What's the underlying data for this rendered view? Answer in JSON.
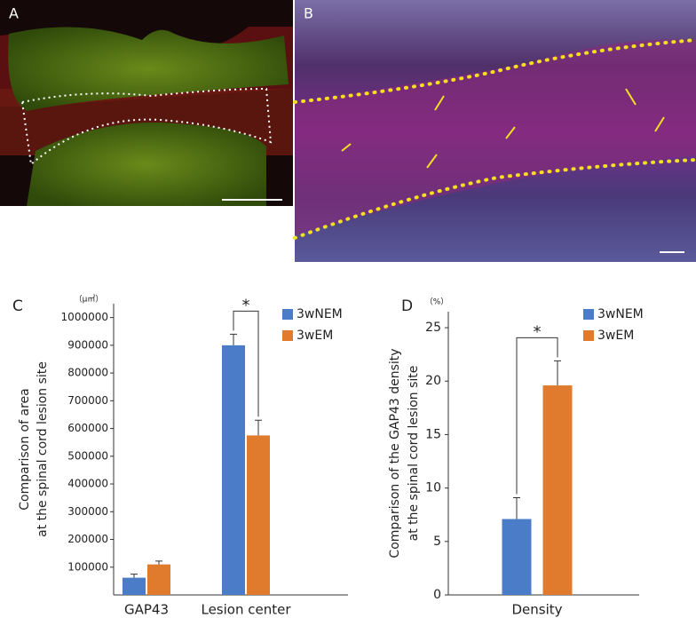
{
  "panels": [
    "A",
    "B",
    "C",
    "D"
  ],
  "chart_data": [
    {
      "type": "bar",
      "unit": "（μ㎡）",
      "ylabel": [
        "Comparison of area",
        "at the spinal cord lesion site"
      ],
      "categories": [
        "GAP43",
        "Lesion center"
      ],
      "series": [
        {
          "name": "3wNEM",
          "color": "#4a7cc7",
          "values": [
            62000,
            900000
          ],
          "errors": [
            13000,
            40000
          ]
        },
        {
          "name": "3wEM",
          "color": "#e07b2e",
          "values": [
            110000,
            575000
          ],
          "errors": [
            12000,
            55000
          ]
        }
      ],
      "ylim": [
        0,
        1050000
      ],
      "yticks": [
        100000,
        200000,
        300000,
        400000,
        500000,
        600000,
        700000,
        800000,
        900000,
        1000000
      ],
      "significance": "*"
    },
    {
      "type": "bar",
      "unit": "（%）",
      "ylabel": [
        "Comparison of the GAP43 density",
        "at the spinal cord lesion site"
      ],
      "categories": [
        "Density"
      ],
      "series": [
        {
          "name": "3wNEM",
          "color": "#4a7cc7",
          "values": [
            7.1
          ],
          "errors": [
            2.0
          ]
        },
        {
          "name": "3wEM",
          "color": "#e07b2e",
          "values": [
            19.6
          ],
          "errors": [
            2.3
          ]
        }
      ],
      "ylim": [
        0,
        26.5
      ],
      "yticks": [
        0,
        5,
        10,
        15,
        20,
        25
      ],
      "significance": "*"
    }
  ]
}
